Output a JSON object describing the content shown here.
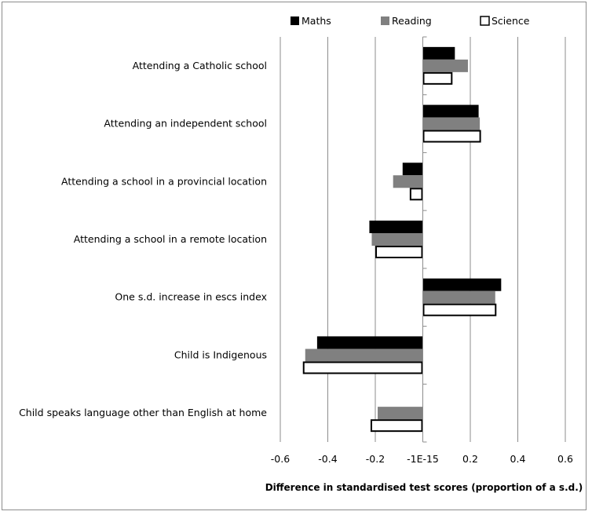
{
  "chart_data": {
    "type": "bar",
    "orientation": "horizontal",
    "categories": [
      "Attending a Catholic school",
      "Attending an independent school",
      "Attending a school in a provincial location",
      "Attending a school in a remote location",
      "One s.d. increase in escs index",
      "Child is Indigenous",
      "Child speaks language other than English at home"
    ],
    "series": [
      {
        "name": "Maths",
        "values": [
          0.135,
          0.235,
          -0.085,
          -0.225,
          0.33,
          -0.445,
          null
        ]
      },
      {
        "name": "Reading",
        "values": [
          0.19,
          0.24,
          -0.125,
          -0.215,
          0.305,
          -0.495,
          -0.19
        ]
      },
      {
        "name": "Science",
        "values": [
          0.125,
          0.245,
          -0.055,
          -0.2,
          0.31,
          -0.505,
          -0.22
        ]
      }
    ],
    "series_colors": [
      "#000000",
      "#808080",
      "#ffffff"
    ],
    "xlim": [
      -0.6,
      0.6
    ],
    "xticks": [
      -0.6,
      -0.4,
      -0.2,
      0,
      0.2,
      0.4,
      0.6
    ],
    "xtick_labels": [
      "-0.6",
      "-0.4",
      "-0.2",
      "-1E-15",
      "0.2",
      "0.4",
      "0.6"
    ],
    "xlabel": "Difference in standardised test scores (proportion of a s.d.)",
    "ylabel": "",
    "title": "",
    "grid": "vertical",
    "legend": "top"
  }
}
